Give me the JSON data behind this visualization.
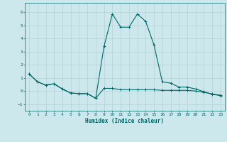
{
  "xlabel": "Humidex (Indice chaleur)",
  "background_color": "#cce8ec",
  "line_color": "#006868",
  "xlim": [
    -0.5,
    23.5
  ],
  "ylim": [
    -1.5,
    6.7
  ],
  "yticks": [
    -1,
    0,
    1,
    2,
    3,
    4,
    5,
    6
  ],
  "xticks": [
    0,
    1,
    2,
    3,
    4,
    5,
    6,
    7,
    8,
    9,
    10,
    11,
    12,
    13,
    14,
    15,
    16,
    17,
    18,
    19,
    20,
    21,
    22,
    23
  ],
  "series1_x": [
    0,
    1,
    2,
    3,
    4,
    5,
    6,
    7,
    8,
    9,
    10,
    11,
    12,
    13,
    14,
    15,
    16,
    17,
    18,
    19,
    20,
    21,
    22,
    23
  ],
  "series1_y": [
    1.3,
    0.7,
    0.45,
    0.55,
    0.15,
    -0.15,
    -0.2,
    -0.2,
    -0.55,
    3.4,
    5.85,
    4.85,
    4.85,
    5.85,
    5.3,
    3.5,
    0.7,
    0.6,
    0.3,
    0.3,
    0.15,
    -0.05,
    -0.25,
    -0.35
  ],
  "series2_x": [
    0,
    1,
    2,
    3,
    4,
    5,
    6,
    7,
    8,
    9,
    10,
    11,
    12,
    13,
    14,
    15,
    16,
    17,
    18,
    19,
    20,
    21,
    22,
    23
  ],
  "series2_y": [
    1.3,
    0.7,
    0.45,
    0.55,
    0.15,
    -0.15,
    -0.2,
    -0.2,
    -0.55,
    0.2,
    0.2,
    0.1,
    0.1,
    0.1,
    0.1,
    0.1,
    0.05,
    0.05,
    0.05,
    0.05,
    0.0,
    -0.1,
    -0.22,
    -0.32
  ],
  "grid_color": "#b0cdd0",
  "marker": "+",
  "marker_size": 3,
  "linewidth": 0.8
}
